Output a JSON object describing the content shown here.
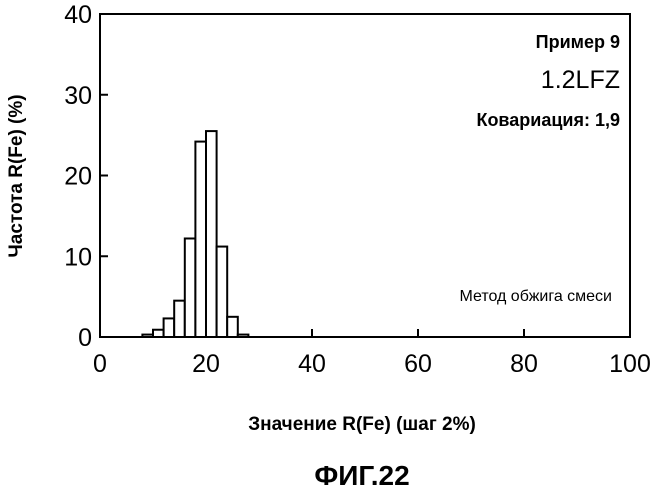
{
  "chart_data": {
    "type": "bar",
    "subtype": "histogram",
    "bin_step": 2,
    "bins": [
      {
        "x": 9,
        "y": 0.3
      },
      {
        "x": 11,
        "y": 0.9
      },
      {
        "x": 13,
        "y": 2.3
      },
      {
        "x": 15,
        "y": 4.5
      },
      {
        "x": 17,
        "y": 12.2
      },
      {
        "x": 19,
        "y": 24.2
      },
      {
        "x": 21,
        "y": 25.5
      },
      {
        "x": 23,
        "y": 11.2
      },
      {
        "x": 25,
        "y": 2.5
      },
      {
        "x": 27,
        "y": 0.3
      }
    ],
    "xlim": [
      0,
      100
    ],
    "ylim": [
      0,
      40
    ],
    "x_ticks": [
      0,
      20,
      40,
      60,
      80,
      100
    ],
    "y_ticks": [
      0,
      10,
      20,
      30,
      40
    ],
    "x_tick_labels": [
      "0",
      "20",
      "40",
      "60",
      "80",
      "100"
    ],
    "y_tick_labels": [
      "0",
      "10",
      "20",
      "30",
      "40"
    ],
    "xlabel": "Значение R(Fe) (шаг 2%)",
    "ylabel": "Частота R(Fe) (%)",
    "grid": false,
    "legend": "none",
    "bar_color": "#ffffff",
    "edge_color": "#000000"
  },
  "annotations": {
    "example": "Пример 9",
    "sample": "1.2LFZ",
    "covariation": "Ковариация: 1,9",
    "method": "Метод обжига смеси"
  },
  "figure_label": "ФИГ.22"
}
